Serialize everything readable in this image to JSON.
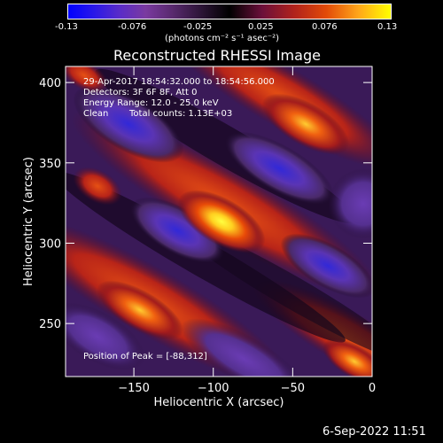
{
  "colorbar": {
    "ticks": [
      "-0.13",
      "-0.076",
      "-0.025",
      "0.025",
      "0.076",
      "0.13"
    ],
    "unit": "(photons cm⁻² s⁻¹ asec⁻²)"
  },
  "title": "Reconstructed RHESSI Image",
  "overlay": {
    "line1": "29-Apr-2017 18:54:32.000 to 18:54:56.000",
    "line2": "Detectors: 3F 6F 8F, Att 0",
    "line3": "Energy Range: 12.0 - 25.0 keV",
    "line4_a": "Clean",
    "line4_b": "Total counts: 1.13E+03",
    "peak": "Position of Peak = [-88,312]"
  },
  "footer": {
    "timestamp": "6-Sep-2022 11:51"
  },
  "chart_data": {
    "type": "heatmap",
    "title": "Reconstructed RHESSI Image",
    "xlabel": "Heliocentric X (arcsec)",
    "ylabel": "Heliocentric Y (arcsec)",
    "xlim": [
      -193,
      0
    ],
    "ylim": [
      217,
      410
    ],
    "xticks": [
      -150,
      -100,
      -50,
      0
    ],
    "yticks": [
      250,
      300,
      350,
      400
    ],
    "colorbar_range": [
      -0.13,
      0.13
    ],
    "peak": {
      "x": -88,
      "y": 312,
      "value": 0.13
    },
    "colors": {
      "low": "#0000ff",
      "mid": "#000000",
      "high": "#ffff00"
    }
  }
}
